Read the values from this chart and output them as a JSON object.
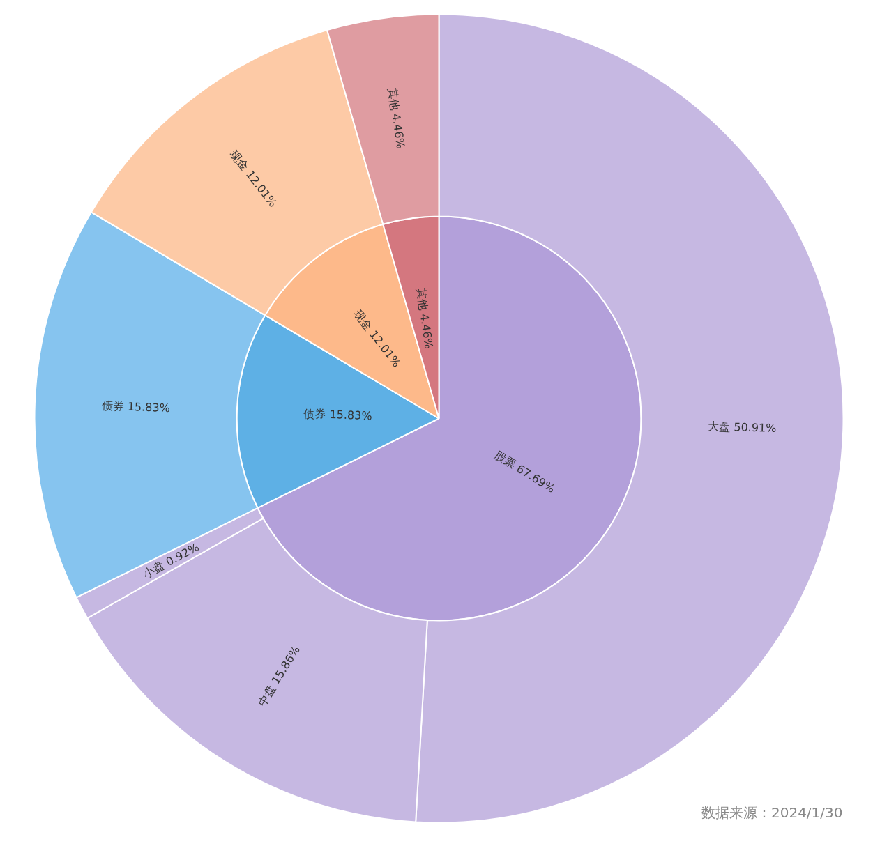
{
  "chart_data": {
    "type": "pie",
    "annotations": [
      "数据来源：2024/1/30"
    ],
    "categories": [
      "股票",
      "债券",
      "现金",
      "其他",
      "大盘",
      "中盘",
      "小盘",
      "债券",
      "现金",
      "其他"
    ],
    "series": [
      {
        "values": [
          67.69,
          15.83,
          12.01,
          4.46,
          null,
          null,
          null,
          null,
          null,
          null
        ],
        "value_labels": [
          "67.69%",
          "15.83%",
          "12.01%",
          "4.46%",
          null,
          null,
          null,
          null,
          null,
          null
        ],
        "colors": [
          "#b3a0da",
          "#5eb0e5",
          "#fdb98a",
          "#d4777f",
          null,
          null,
          null,
          null,
          null,
          null
        ]
      },
      {
        "values": [
          null,
          null,
          null,
          null,
          50.91,
          15.86,
          0.92,
          15.83,
          12.01,
          4.46
        ],
        "value_labels": [
          null,
          null,
          null,
          null,
          "50.91%",
          "15.86%",
          "0.92%",
          "15.83%",
          "12.01%",
          "4.46%"
        ],
        "colors": [
          null,
          null,
          null,
          null,
          "#c6b8e2",
          "#c6b8e2",
          "#c6b8e2",
          "#86c4ef",
          "#fdcaa6",
          "#df9ca1"
        ]
      }
    ]
  }
}
